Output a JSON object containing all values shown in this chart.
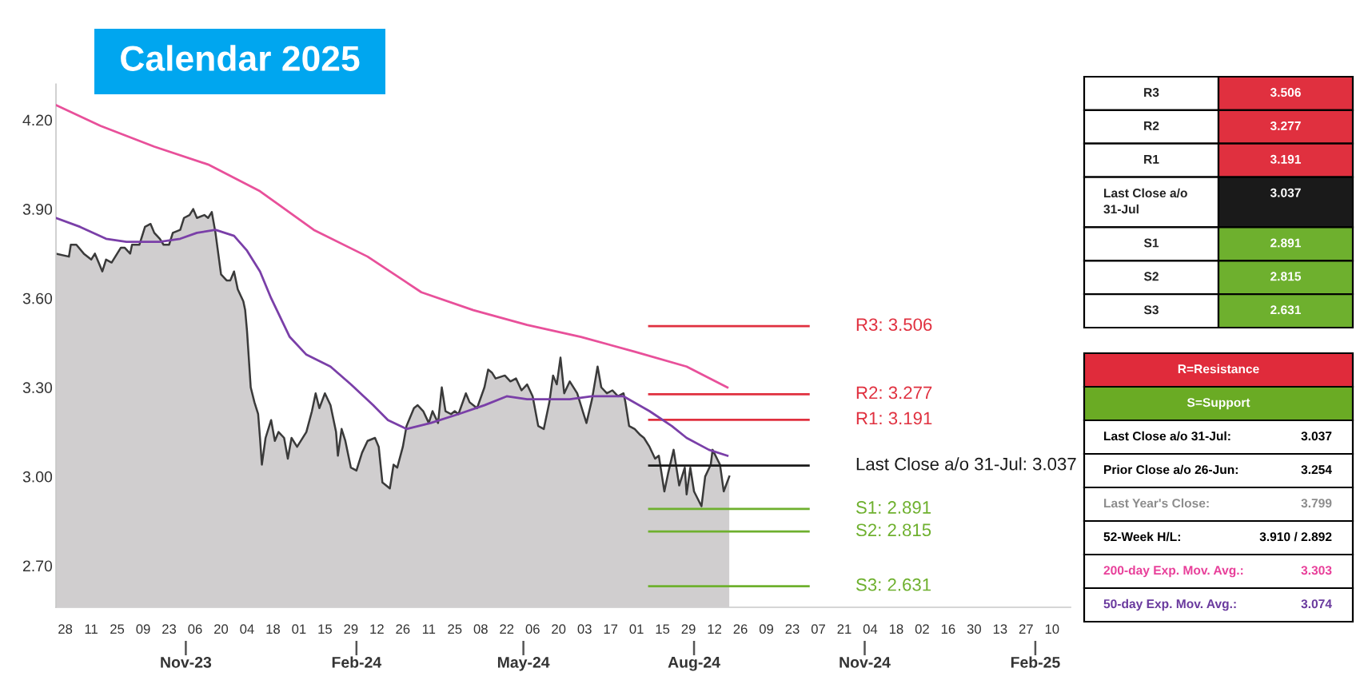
{
  "chart_data": [
    {
      "type": "line",
      "title": "Calendar 2025",
      "series": [
        {
          "type": "area",
          "color": "#d0cecf",
          "x": [
            "2023-08-23",
            "2023-08-30",
            "2023-08-31",
            "2023-09-03",
            "2023-09-07",
            "2023-09-11",
            "2023-09-13",
            "2023-09-15",
            "2023-09-17",
            "2023-09-19",
            "2023-09-22",
            "2023-09-27",
            "2023-09-29",
            "2023-10-02",
            "2023-10-03",
            "2023-10-07",
            "2023-10-10",
            "2023-10-13",
            "2023-10-15",
            "2023-10-18",
            "2023-10-20",
            "2023-10-23",
            "2023-10-25",
            "2023-10-29",
            "2023-10-31",
            "2023-11-03",
            "2023-11-05",
            "2023-11-07",
            "2023-11-11",
            "2023-11-13",
            "2023-11-15",
            "2023-11-17",
            "2023-11-20",
            "2023-11-23",
            "2023-11-25",
            "2023-11-27",
            "2023-11-29",
            "2023-12-02",
            "2023-12-03",
            "2023-12-04",
            "2023-12-06",
            "2023-12-08",
            "2023-12-10",
            "2023-12-11",
            "2023-12-12",
            "2023-12-14",
            "2023-12-17",
            "2023-12-19",
            "2023-12-21",
            "2023-12-24",
            "2023-12-26",
            "2023-12-28",
            "2023-12-31",
            "2024-01-05",
            "2024-01-08",
            "2024-01-10",
            "2024-01-12",
            "2024-01-15",
            "2024-01-18",
            "2024-01-21",
            "2024-01-22",
            "2024-01-24",
            "2024-01-26",
            "2024-01-29",
            "2024-02-01",
            "2024-02-04",
            "2024-02-07",
            "2024-02-11",
            "2024-02-13",
            "2024-02-15",
            "2024-02-19",
            "2024-02-21",
            "2024-02-23",
            "2024-02-26",
            "2024-02-28",
            "2024-03-03",
            "2024-03-05",
            "2024-03-08",
            "2024-03-11",
            "2024-03-13",
            "2024-03-16",
            "2024-03-18",
            "2024-03-20",
            "2024-03-23",
            "2024-03-25",
            "2024-03-27",
            "2024-03-31",
            "2024-04-02",
            "2024-04-06",
            "2024-04-10",
            "2024-04-12",
            "2024-04-14",
            "2024-04-16",
            "2024-04-21",
            "2024-04-24",
            "2024-04-27",
            "2024-04-30",
            "2024-05-03",
            "2024-05-06",
            "2024-05-09",
            "2024-05-12",
            "2024-05-15",
            "2024-05-17",
            "2024-05-19",
            "2024-05-21",
            "2024-05-23",
            "2024-05-26",
            "2024-05-30",
            "2024-06-02",
            "2024-06-04",
            "2024-06-07",
            "2024-06-10",
            "2024-06-12",
            "2024-06-15",
            "2024-06-18",
            "2024-06-21",
            "2024-06-24",
            "2024-06-25",
            "2024-06-27",
            "2024-06-30",
            "2024-07-03",
            "2024-07-05",
            "2024-07-08",
            "2024-07-11",
            "2024-07-13",
            "2024-07-16",
            "2024-07-18",
            "2024-07-21",
            "2024-07-24",
            "2024-07-27",
            "2024-07-28",
            "2024-07-30",
            "2024-08-01",
            "2024-08-05",
            "2024-08-07",
            "2024-08-10",
            "2024-08-11",
            "2024-08-15",
            "2024-08-17",
            "2024-08-20"
          ],
          "values": [
            3.75,
            3.74,
            3.78,
            3.78,
            3.75,
            3.73,
            3.75,
            3.72,
            3.69,
            3.73,
            3.72,
            3.77,
            3.77,
            3.75,
            3.78,
            3.78,
            3.84,
            3.85,
            3.82,
            3.8,
            3.78,
            3.78,
            3.82,
            3.83,
            3.87,
            3.88,
            3.9,
            3.87,
            3.88,
            3.87,
            3.89,
            3.82,
            3.68,
            3.66,
            3.66,
            3.69,
            3.63,
            3.59,
            3.56,
            3.49,
            3.3,
            3.25,
            3.21,
            3.13,
            3.04,
            3.13,
            3.19,
            3.12,
            3.15,
            3.13,
            3.06,
            3.13,
            3.1,
            3.15,
            3.22,
            3.28,
            3.23,
            3.28,
            3.24,
            3.15,
            3.07,
            3.16,
            3.12,
            3.03,
            3.02,
            3.08,
            3.12,
            3.13,
            3.1,
            2.98,
            2.96,
            3.04,
            3.03,
            3.1,
            3.17,
            3.23,
            3.24,
            3.22,
            3.18,
            3.22,
            3.18,
            3.3,
            3.22,
            3.21,
            3.22,
            3.21,
            3.28,
            3.25,
            3.23,
            3.3,
            3.36,
            3.35,
            3.33,
            3.34,
            3.32,
            3.33,
            3.29,
            3.31,
            3.27,
            3.17,
            3.16,
            3.25,
            3.34,
            3.31,
            3.4,
            3.28,
            3.32,
            3.28,
            3.22,
            3.18,
            3.26,
            3.37,
            3.3,
            3.28,
            3.29,
            3.27,
            3.28,
            3.25,
            3.17,
            3.16,
            3.14,
            3.13,
            3.1,
            3.06,
            3.07,
            2.95,
            3.01,
            3.09,
            2.97,
            3.03,
            2.94,
            3.03,
            2.95,
            2.9,
            3.0,
            3.04,
            3.09,
            3.04,
            2.95,
            3.0
          ]
        },
        {
          "type": "line",
          "color": "#e8509a",
          "x": [
            "2023-08-23",
            "2023-09-16",
            "2023-10-15",
            "2023-11-13",
            "2023-12-11",
            "2024-01-09",
            "2024-02-07",
            "2024-03-07",
            "2024-04-04",
            "2024-05-03",
            "2024-06-01",
            "2024-06-30",
            "2024-07-28",
            "2024-08-19"
          ],
          "values": [
            4.25,
            4.18,
            4.11,
            4.05,
            3.96,
            3.83,
            3.74,
            3.62,
            3.56,
            3.51,
            3.47,
            3.42,
            3.37,
            3.3
          ]
        },
        {
          "type": "line",
          "color": "#7a3fa8",
          "x": [
            "2023-08-23",
            "2023-09-05",
            "2023-09-19",
            "2023-09-30",
            "2023-10-18",
            "2023-10-29",
            "2023-11-07",
            "2023-11-17",
            "2023-11-27",
            "2023-12-04",
            "2023-12-11",
            "2023-12-17",
            "2023-12-27",
            "2024-01-05",
            "2024-01-18",
            "2024-01-29",
            "2024-02-10",
            "2024-02-18",
            "2024-02-28",
            "2024-03-12",
            "2024-03-27",
            "2024-04-10",
            "2024-04-22",
            "2024-05-03",
            "2024-05-15",
            "2024-05-26",
            "2024-06-07",
            "2024-06-15",
            "2024-06-24",
            "2024-07-08",
            "2024-07-20",
            "2024-07-28",
            "2024-08-09",
            "2024-08-19"
          ],
          "values": [
            3.87,
            3.84,
            3.8,
            3.79,
            3.79,
            3.8,
            3.82,
            3.83,
            3.81,
            3.76,
            3.69,
            3.6,
            3.47,
            3.41,
            3.37,
            3.31,
            3.24,
            3.19,
            3.16,
            3.18,
            3.21,
            3.24,
            3.27,
            3.26,
            3.26,
            3.26,
            3.27,
            3.27,
            3.27,
            3.22,
            3.17,
            3.13,
            3.09,
            3.07
          ]
        }
      ],
      "xlim": [
        "2023-08-23",
        "2025-02-20"
      ],
      "xticks": [
        {
          "value": "2023-11-01",
          "label": "Nov-23"
        },
        {
          "value": "2024-02-01",
          "label": "Feb-24"
        },
        {
          "value": "2024-05-01",
          "label": "May-24"
        },
        {
          "value": "2024-08-01",
          "label": "Aug-24"
        },
        {
          "value": "2024-11-01",
          "label": "Nov-24"
        },
        {
          "value": "2025-02-01",
          "label": "Feb-25"
        }
      ],
      "x2lim": [
        "2023-08-23",
        "2025-02-20"
      ],
      "x2ticks": [
        {
          "value": "2023-08-28",
          "label": "28"
        },
        {
          "value": "2023-09-11",
          "label": "11"
        },
        {
          "value": "2023-09-25",
          "label": "25"
        },
        {
          "value": "2023-10-09",
          "label": "09"
        },
        {
          "value": "2023-10-23",
          "label": "23"
        },
        {
          "value": "2023-11-06",
          "label": "06"
        },
        {
          "value": "2023-11-20",
          "label": "20"
        },
        {
          "value": "2023-12-04",
          "label": "04"
        },
        {
          "value": "2023-12-18",
          "label": "18"
        },
        {
          "value": "2024-01-01",
          "label": "01"
        },
        {
          "value": "2024-01-15",
          "label": "15"
        },
        {
          "value": "2024-01-29",
          "label": "29"
        },
        {
          "value": "2024-02-12",
          "label": "12"
        },
        {
          "value": "2024-02-26",
          "label": "26"
        },
        {
          "value": "2024-03-11",
          "label": "11"
        },
        {
          "value": "2024-03-25",
          "label": "25"
        },
        {
          "value": "2024-04-08",
          "label": "08"
        },
        {
          "value": "2024-04-22",
          "label": "22"
        },
        {
          "value": "2024-05-06",
          "label": "06"
        },
        {
          "value": "2024-05-20",
          "label": "20"
        },
        {
          "value": "2024-06-03",
          "label": "03"
        },
        {
          "value": "2024-06-17",
          "label": "17"
        },
        {
          "value": "2024-07-01",
          "label": "01"
        },
        {
          "value": "2024-07-15",
          "label": "15"
        },
        {
          "value": "2024-07-29",
          "label": "29"
        },
        {
          "value": "2024-08-12",
          "label": "12"
        },
        {
          "value": "2024-08-26",
          "label": "26"
        },
        {
          "value": "2024-09-09",
          "label": "09"
        },
        {
          "value": "2024-09-23",
          "label": "23"
        },
        {
          "value": "2024-10-07",
          "label": "07"
        },
        {
          "value": "2024-10-21",
          "label": "21"
        },
        {
          "value": "2024-11-04",
          "label": "04"
        },
        {
          "value": "2024-11-18",
          "label": "18"
        },
        {
          "value": "2024-12-02",
          "label": "02"
        },
        {
          "value": "2024-12-16",
          "label": "16"
        },
        {
          "value": "2024-12-30",
          "label": "30"
        },
        {
          "value": "2025-01-13",
          "label": "13"
        },
        {
          "value": "2025-01-27",
          "label": "27"
        },
        {
          "value": "2025-02-10",
          "label": "10"
        }
      ],
      "ylim": [
        2.56,
        4.32
      ],
      "yticks": [
        {
          "value": 2.7,
          "label": "2.70"
        },
        {
          "value": 3.0,
          "label": "3.00"
        },
        {
          "value": 3.3,
          "label": "3.30"
        },
        {
          "value": 3.6,
          "label": "3.60"
        },
        {
          "value": 3.9,
          "label": "3.90"
        },
        {
          "value": 4.2,
          "label": "4.20"
        }
      ],
      "ref_lines": [
        {
          "axis": "y",
          "value": 3.506,
          "label": "R3: 3.506",
          "color": "#e0303f"
        },
        {
          "axis": "y",
          "value": 3.277,
          "label": "R2: 3.277",
          "color": "#e0303f"
        },
        {
          "axis": "y",
          "value": 3.191,
          "label": "R1: 3.191",
          "color": "#e0303f"
        },
        {
          "axis": "y",
          "value": 3.037,
          "label": "Last Close a/o 31-Jul: 3.037",
          "color": "#1a1a1a"
        },
        {
          "axis": "y",
          "value": 2.891,
          "label": "S1: 2.891",
          "color": "#6eb02e"
        },
        {
          "axis": "y",
          "value": 2.815,
          "label": "S2: 2.815",
          "color": "#6eb02e"
        },
        {
          "axis": "y",
          "value": 2.631,
          "label": "S3: 2.631",
          "color": "#6eb02e"
        }
      ]
    },
    {
      "type": "other",
      "categories": [
        "R3",
        "R2",
        "R1",
        "Last Close a/o\n31-Jul",
        "S1",
        "S2",
        "S3"
      ],
      "values": [
        3.506,
        3.277,
        3.191,
        3.037,
        2.891,
        2.815,
        2.631
      ],
      "data_labels": true
    },
    {
      "type": "other",
      "categories": [
        "R=Resistance",
        "S=Support"
      ],
      "colors": [
        "#e02b3b",
        "#6aab24"
      ],
      "annotations": [
        "Last Close a/o 31-Jul:",
        "3.037",
        "Prior Close a/o 26-Jun:",
        "3.254",
        "Last Year's Close:",
        "3.799",
        "52-Week H/L:",
        "3.910 / 2.892",
        "200-day Exp. Mov. Avg.:",
        "3.303",
        "50-day Exp. Mov. Avg.:",
        "3.074"
      ]
    }
  ]
}
